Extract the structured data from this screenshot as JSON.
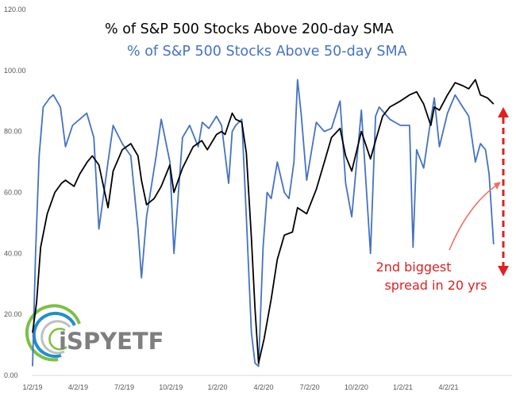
{
  "chart_data": {
    "type": "line",
    "title": "% of S&P 500 Stocks Above 200-day SMA",
    "subtitle": "% of S&P 500 Stocks Above 50-day SMA",
    "xlabel": "",
    "ylabel": "",
    "ylim": [
      0,
      120
    ],
    "y_ticks": [
      "0.00",
      "20.00",
      "40.00",
      "60.00",
      "80.00",
      "100.00",
      "120.00"
    ],
    "x_ticks": [
      "1/2/19",
      "4/2/19",
      "7/2/19",
      "10/2/19",
      "1/2/20",
      "4/2/20",
      "7/2/20",
      "10/2/20",
      "1/2/21",
      "4/2/21"
    ],
    "grid": false,
    "legend": "none",
    "colors": {
      "sma200": "#000000",
      "sma50": "#4472C4",
      "annotation": "#E02020",
      "arrow": "#F07060"
    },
    "series": [
      {
        "name": "% of S&P 500 Stocks Above 200-day SMA",
        "color": "#000000",
        "x": [
          "2019-01-02",
          "2019-01-10",
          "2019-01-18",
          "2019-01-31",
          "2019-02-15",
          "2019-02-28",
          "2019-03-08",
          "2019-03-25",
          "2019-04-05",
          "2019-04-20",
          "2019-04-30",
          "2019-05-13",
          "2019-05-31",
          "2019-06-10",
          "2019-06-28",
          "2019-07-15",
          "2019-07-29",
          "2019-08-05",
          "2019-08-15",
          "2019-08-30",
          "2019-09-13",
          "2019-09-30",
          "2019-10-08",
          "2019-10-25",
          "2019-11-15",
          "2019-12-02",
          "2019-12-13",
          "2019-12-31",
          "2020-01-10",
          "2020-01-17",
          "2020-01-31",
          "2020-02-07",
          "2020-02-19",
          "2020-02-28",
          "2020-03-09",
          "2020-03-16",
          "2020-03-23",
          "2020-04-03",
          "2020-04-17",
          "2020-04-29",
          "2020-05-13",
          "2020-05-29",
          "2020-06-08",
          "2020-06-26",
          "2020-07-15",
          "2020-07-31",
          "2020-08-14",
          "2020-08-31",
          "2020-09-11",
          "2020-09-23",
          "2020-10-12",
          "2020-10-30",
          "2020-11-09",
          "2020-11-23",
          "2020-12-07",
          "2020-12-28",
          "2021-01-15",
          "2021-01-29",
          "2021-02-12",
          "2021-02-26",
          "2021-03-05",
          "2021-03-15",
          "2021-03-31",
          "2021-04-15",
          "2021-04-30",
          "2021-05-12",
          "2021-05-25",
          "2021-06-04",
          "2021-06-18",
          "2021-06-30"
        ],
        "values": [
          14,
          24,
          42,
          53,
          60,
          63,
          64,
          62,
          66,
          70,
          72,
          69,
          55,
          67,
          74,
          76,
          72,
          64,
          56,
          58,
          62,
          69,
          60,
          68,
          75,
          77,
          74,
          79,
          80,
          79,
          86,
          84,
          83,
          73,
          45,
          22,
          4,
          12,
          25,
          38,
          46,
          47,
          55,
          53,
          61,
          70,
          78,
          81,
          72,
          67,
          80,
          71,
          77,
          85,
          88,
          90,
          92,
          93,
          89,
          82,
          88,
          87,
          92,
          96,
          95,
          94,
          97,
          92,
          91,
          89
        ]
      },
      {
        "name": "% of S&P 500 Stocks Above 50-day SMA",
        "color": "#4472C4",
        "x": [
          "2019-01-02",
          "2019-01-08",
          "2019-01-15",
          "2019-01-23",
          "2019-02-05",
          "2019-02-12",
          "2019-02-26",
          "2019-03-08",
          "2019-03-22",
          "2019-04-05",
          "2019-04-19",
          "2019-05-03",
          "2019-05-13",
          "2019-05-31",
          "2019-06-10",
          "2019-06-28",
          "2019-07-15",
          "2019-07-29",
          "2019-08-05",
          "2019-08-15",
          "2019-09-03",
          "2019-09-13",
          "2019-09-30",
          "2019-10-08",
          "2019-10-25",
          "2019-11-08",
          "2019-11-25",
          "2019-12-03",
          "2019-12-16",
          "2019-12-31",
          "2020-01-10",
          "2020-01-24",
          "2020-01-31",
          "2020-02-07",
          "2020-02-19",
          "2020-02-28",
          "2020-03-09",
          "2020-03-16",
          "2020-03-23",
          "2020-04-01",
          "2020-04-09",
          "2020-04-17",
          "2020-04-29",
          "2020-05-13",
          "2020-05-22",
          "2020-06-01",
          "2020-06-08",
          "2020-06-15",
          "2020-06-26",
          "2020-07-15",
          "2020-07-31",
          "2020-08-14",
          "2020-08-31",
          "2020-09-11",
          "2020-09-23",
          "2020-10-12",
          "2020-10-30",
          "2020-11-09",
          "2020-11-16",
          "2020-12-07",
          "2020-12-28",
          "2021-01-15",
          "2021-01-22",
          "2021-01-29",
          "2021-02-12",
          "2021-02-26",
          "2021-03-05",
          "2021-03-15",
          "2021-03-31",
          "2021-04-15",
          "2021-04-30",
          "2021-05-12",
          "2021-05-25",
          "2021-06-04",
          "2021-06-14",
          "2021-06-21",
          "2021-06-30"
        ],
        "values": [
          3,
          40,
          72,
          88,
          91,
          92,
          88,
          75,
          82,
          84,
          86,
          78,
          48,
          70,
          82,
          76,
          72,
          48,
          32,
          52,
          72,
          84,
          70,
          40,
          78,
          82,
          75,
          83,
          81,
          85,
          82,
          63,
          80,
          82,
          84,
          52,
          14,
          4,
          3,
          42,
          60,
          58,
          70,
          60,
          58,
          70,
          97,
          86,
          64,
          83,
          80,
          81,
          90,
          63,
          52,
          87,
          40,
          85,
          88,
          84,
          82,
          82,
          42,
          74,
          68,
          84,
          91,
          75,
          86,
          92,
          88,
          85,
          70,
          76,
          74,
          66,
          43
        ]
      }
    ],
    "annotations": {
      "spread_label_line1": "2nd biggest",
      "spread_label_line2": "spread in 20 yrs"
    },
    "logo": {
      "text": "iSPYETF",
      "colors": [
        "#1F8FCF",
        "#7CC142",
        "#BFBFBF"
      ]
    }
  }
}
